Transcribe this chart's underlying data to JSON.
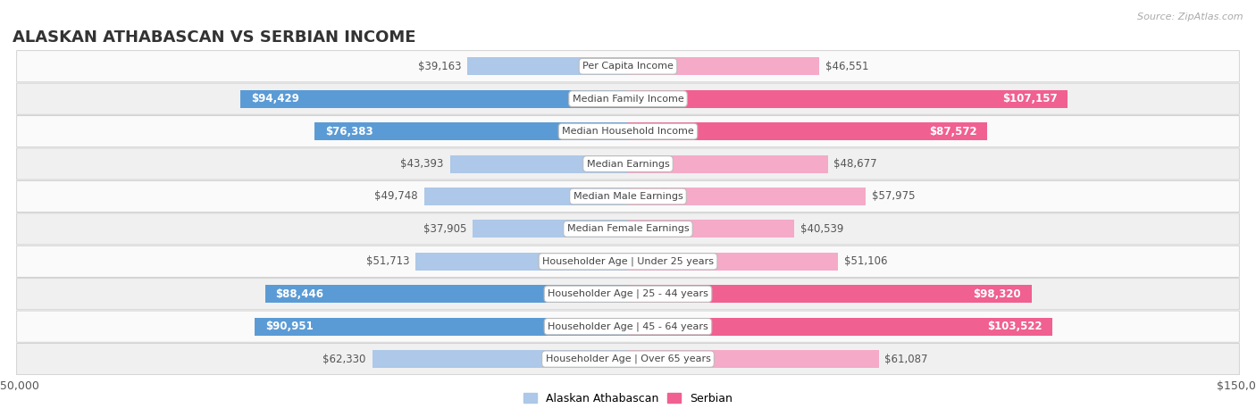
{
  "title": "ALASKAN ATHABASCAN VS SERBIAN INCOME",
  "source": "Source: ZipAtlas.com",
  "categories": [
    "Per Capita Income",
    "Median Family Income",
    "Median Household Income",
    "Median Earnings",
    "Median Male Earnings",
    "Median Female Earnings",
    "Householder Age | Under 25 years",
    "Householder Age | 25 - 44 years",
    "Householder Age | 45 - 64 years",
    "Householder Age | Over 65 years"
  ],
  "alaskan_values": [
    39163,
    94429,
    76383,
    43393,
    49748,
    37905,
    51713,
    88446,
    90951,
    62330
  ],
  "serbian_values": [
    46551,
    107157,
    87572,
    48677,
    57975,
    40539,
    51106,
    98320,
    103522,
    61087
  ],
  "alaskan_labels": [
    "$39,163",
    "$94,429",
    "$76,383",
    "$43,393",
    "$49,748",
    "$37,905",
    "$51,713",
    "$88,446",
    "$90,951",
    "$62,330"
  ],
  "serbian_labels": [
    "$46,551",
    "$107,157",
    "$87,572",
    "$48,677",
    "$57,975",
    "$40,539",
    "$51,106",
    "$98,320",
    "$103,522",
    "$61,087"
  ],
  "alaskan_color_light": "#adc8e8",
  "alaskan_color_dark": "#5b9bd5",
  "serbian_color_light": "#f5aac8",
  "serbian_color_dark": "#f06090",
  "bar_height": 0.55,
  "max_value": 150000,
  "row_bg_odd": "#f0f0f0",
  "row_bg_even": "#fafafa",
  "label_inside_threshold": 70000,
  "legend_alaskan": "Alaskan Athabascan",
  "legend_serbian": "Serbian",
  "value_label_fontsize": 8.5,
  "category_label_fontsize": 8.0
}
